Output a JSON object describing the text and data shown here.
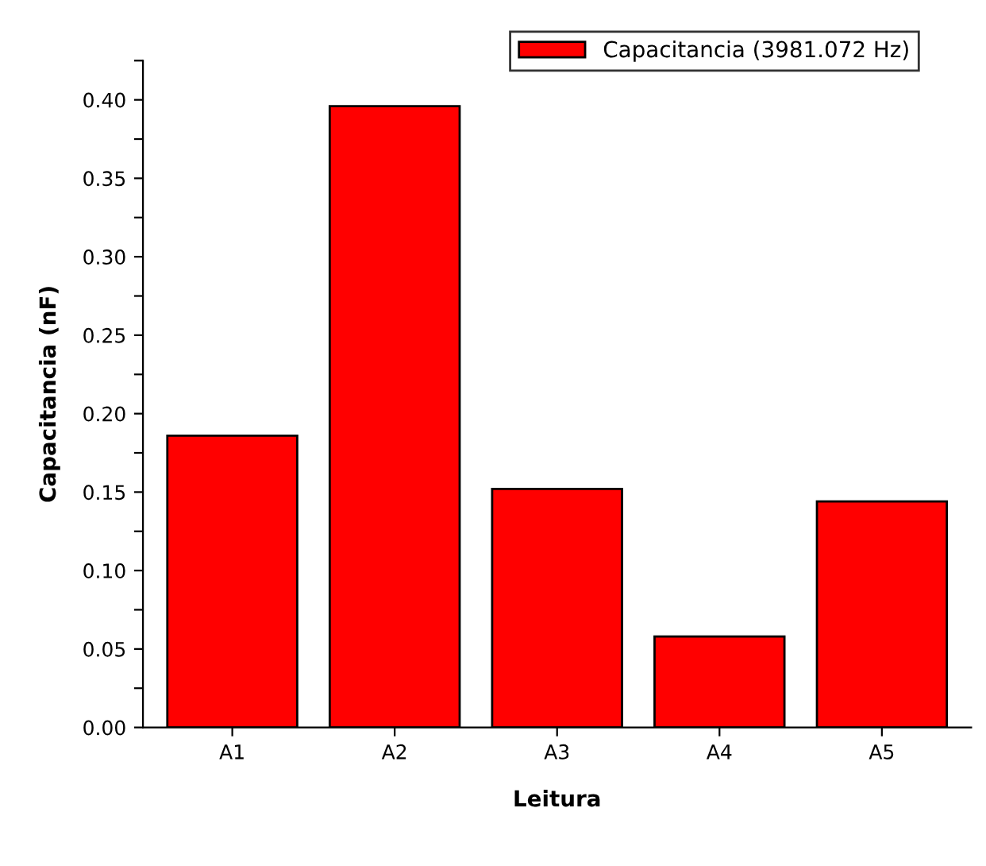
{
  "chart_data": {
    "type": "bar",
    "xlabel": "Leitura",
    "ylabel": "Capacitancia (nF)",
    "categories": [
      "A1",
      "A2",
      "A3",
      "A4",
      "A5"
    ],
    "series": [
      {
        "name": "Capacitancia (3981.072 Hz)",
        "color": "#ff0000",
        "values": [
          0.186,
          0.396,
          0.152,
          0.058,
          0.144
        ]
      }
    ],
    "ylim": [
      0,
      0.425
    ],
    "yticks": [
      "0.00",
      {
        "value": 0.025,
        "label": null
      },
      {
        "value": 0.05,
        "label": "0.05"
      },
      {
        "value": 0.075,
        "label": null
      },
      {
        "value": 0.1,
        "label": "0.10"
      },
      {
        "value": 0.125,
        "label": null
      },
      {
        "value": 0.15,
        "label": "0.15"
      },
      {
        "value": 0.175,
        "label": null
      },
      {
        "value": 0.2,
        "label": "0.20"
      },
      {
        "value": 0.225,
        "label": null
      },
      {
        "value": 0.25,
        "label": "0.25"
      },
      {
        "value": 0.275,
        "label": null
      },
      {
        "value": 0.3,
        "label": "0.30"
      },
      {
        "value": 0.325,
        "label": null
      },
      {
        "value": 0.35,
        "label": "0.35"
      },
      {
        "value": 0.375,
        "label": null
      },
      {
        "value": 0.4,
        "label": "0.40"
      },
      {
        "value": 0.425,
        "label": null
      }
    ],
    "legend": "top right",
    "grid": false
  }
}
